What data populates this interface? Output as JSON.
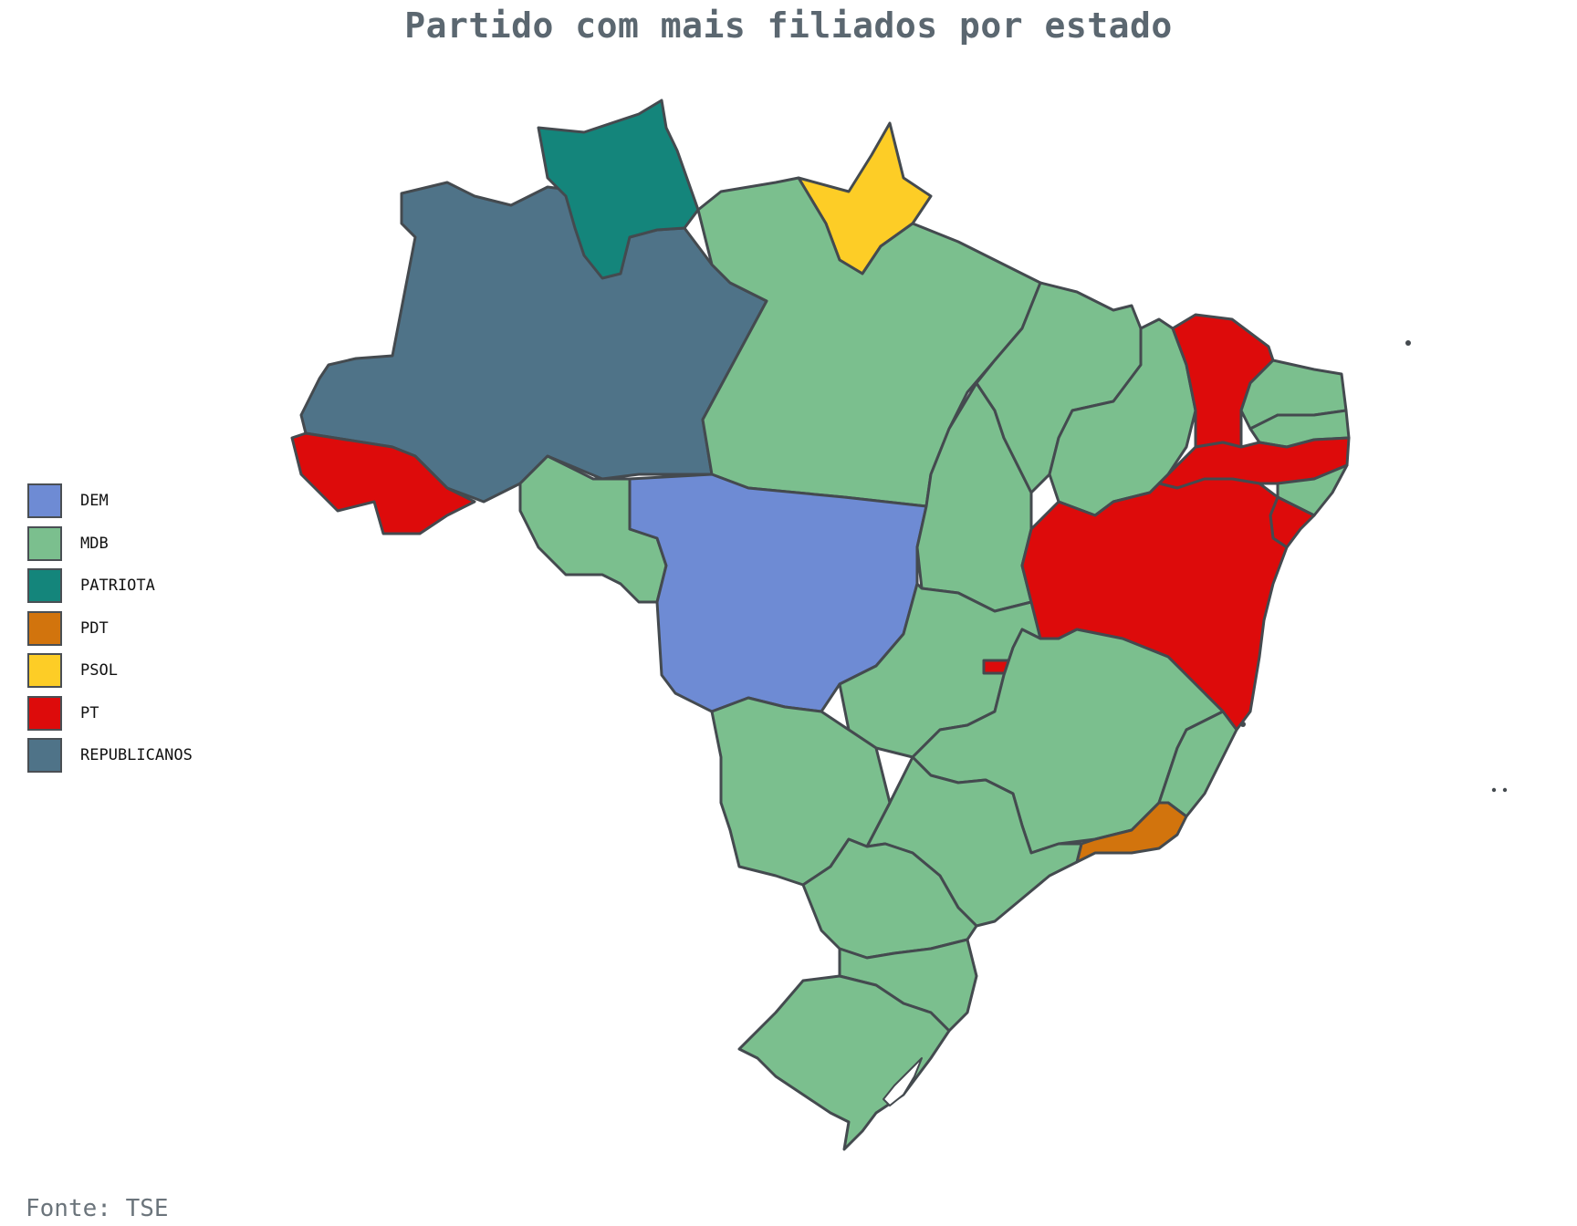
{
  "title": "Partido com mais filiados por estado",
  "source": "Fonte: TSE",
  "colors": {
    "DEM": "#6e8bd4",
    "MDB": "#7bbf8e",
    "PATRIOTA": "#14857b",
    "PDT": "#d2740d",
    "PSOL": "#fdcd26",
    "PT": "#dd0b0b",
    "REPUBLICANOS": "#4f7388",
    "border": "#444a4f"
  },
  "legend": [
    {
      "party": "DEM",
      "color": "#6e8bd4"
    },
    {
      "party": "MDB",
      "color": "#7bbf8e"
    },
    {
      "party": "PATRIOTA",
      "color": "#14857b"
    },
    {
      "party": "PDT",
      "color": "#d2740d"
    },
    {
      "party": "PSOL",
      "color": "#fdcd26"
    },
    {
      "party": "PT",
      "color": "#dd0b0b"
    },
    {
      "party": "REPUBLICANOS",
      "color": "#4f7388"
    }
  ],
  "states": [
    {
      "state": "AC",
      "party": "PT"
    },
    {
      "state": "AM",
      "party": "REPUBLICANOS"
    },
    {
      "state": "RR",
      "party": "PATRIOTA"
    },
    {
      "state": "AP",
      "party": "PSOL"
    },
    {
      "state": "PA",
      "party": "MDB"
    },
    {
      "state": "RO",
      "party": "MDB"
    },
    {
      "state": "MT",
      "party": "DEM"
    },
    {
      "state": "TO",
      "party": "MDB"
    },
    {
      "state": "MA",
      "party": "MDB"
    },
    {
      "state": "PI",
      "party": "MDB"
    },
    {
      "state": "CE",
      "party": "PT"
    },
    {
      "state": "RN",
      "party": "MDB"
    },
    {
      "state": "PB",
      "party": "MDB"
    },
    {
      "state": "PE",
      "party": "PT"
    },
    {
      "state": "AL",
      "party": "MDB"
    },
    {
      "state": "SE",
      "party": "PT"
    },
    {
      "state": "BA",
      "party": "PT"
    },
    {
      "state": "GO",
      "party": "MDB"
    },
    {
      "state": "DF",
      "party": "PT"
    },
    {
      "state": "MG",
      "party": "MDB"
    },
    {
      "state": "ES",
      "party": "MDB"
    },
    {
      "state": "RJ",
      "party": "PDT"
    },
    {
      "state": "SP",
      "party": "MDB"
    },
    {
      "state": "MS",
      "party": "MDB"
    },
    {
      "state": "PR",
      "party": "MDB"
    },
    {
      "state": "SC",
      "party": "MDB"
    },
    {
      "state": "RS",
      "party": "MDB"
    }
  ]
}
